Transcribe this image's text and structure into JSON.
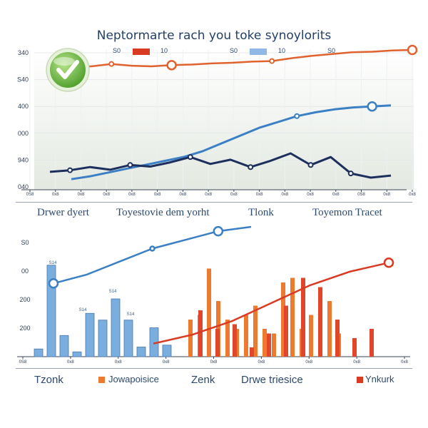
{
  "colors": {
    "orange": "#e0622f",
    "red": "#d93a22",
    "blue": "#3b7fc4",
    "navy": "#1d2f5c",
    "barBlue": "#7aaede",
    "barOrange": "#ee7a30",
    "barRed": "#e2462a",
    "badge": "#6bbf3d"
  },
  "chart_data": [
    {
      "type": "line",
      "title": "Neptormarte rach you toke synoylorits",
      "legend": {
        "placement": "top",
        "entries": [
          "S0",
          "S0",
          "S0",
          "S0"
        ],
        "tails": [
          "10",
          "10"
        ]
      },
      "ytick_labels": [
        "340",
        "S40",
        "400",
        "000",
        "940",
        "040"
      ],
      "xtick_labels": [
        "0S8",
        "0x8",
        "0x8",
        "0x8",
        "0x8",
        "0x8",
        "0x8",
        "0x8",
        "0x8",
        "0x8",
        "0x8",
        "0x8",
        "0x8",
        "0S8",
        "0x8",
        "0x8"
      ],
      "grid": true,
      "series": [
        {
          "color_key": "orange",
          "values": [
            0.72,
            0.72,
            0.76,
            0.73,
            0.72,
            0.74,
            0.75,
            0.77,
            0.78,
            0.8,
            0.81,
            0.86,
            0.9,
            0.93,
            0.96,
            0.97,
            0.99,
            1.0
          ]
        },
        {
          "color_key": "blue",
          "values": [
            0.05,
            0.08,
            0.12,
            0.16,
            0.2,
            0.24,
            0.28,
            0.34,
            0.42,
            0.5,
            0.58,
            0.64,
            0.7,
            0.74,
            0.77,
            0.79,
            0.8,
            0.81
          ]
        },
        {
          "color_key": "navy",
          "values": [
            0.15,
            0.18,
            0.24,
            0.19,
            0.28,
            0.25,
            0.33,
            0.43,
            0.3,
            0.38,
            0.24,
            0.36,
            0.5,
            0.28,
            0.43,
            0.12,
            0.04,
            0.08
          ]
        }
      ]
    },
    {
      "type": "bar",
      "ytick_labels": [
        "S0",
        "00",
        "200",
        "200"
      ],
      "xtick_labels": [
        "0S8",
        "0x8",
        "0x8",
        "0x8",
        "0x8",
        "0x8",
        "0x8",
        "0x8",
        "0x8"
      ],
      "grid": false,
      "bar_labels": [
        "S14",
        "S14",
        "S14",
        "S14"
      ],
      "series": [
        {
          "color_key": "barBlue",
          "values": [
            0.08,
            0.95,
            0.22,
            0.05,
            0.45,
            0.38,
            0.6,
            0.38,
            0.1,
            0.3,
            0.12
          ]
        },
        {
          "color_key": "barOrange",
          "values": [
            0.4,
            0.45,
            0.95,
            0.6,
            0.4,
            0.3,
            0.45,
            0.55,
            0.3,
            0.25,
            0.8,
            0.85,
            0.3,
            0.45,
            0.62,
            0.6,
            0.25
          ]
        },
        {
          "color_key": "barRed",
          "values": [
            0.5,
            0.3,
            0.35,
            0.1,
            0.25,
            0.55,
            0.85,
            0.75,
            0.4,
            0.2,
            0.3
          ]
        }
      ],
      "lines": [
        {
          "color_key": "blue",
          "values": [
            0.35,
            0.45,
            0.6,
            0.75,
            0.85,
            0.95,
            1.0
          ]
        },
        {
          "color_key": "red",
          "values": [
            0.05,
            0.15,
            0.3,
            0.5,
            0.7,
            0.85,
            0.95
          ]
        }
      ]
    }
  ],
  "middle_legend": {
    "left": "Drwer dyert",
    "center": "Toyestovie dem yorht",
    "right1": "Tlonk",
    "right2": "Toyemon Tracet"
  },
  "bottom_legend": {
    "a": "Tzonk",
    "b": "Jowapoisice",
    "c": "Zenk",
    "d": "Drwe triesice",
    "e": "Ynkurk"
  }
}
